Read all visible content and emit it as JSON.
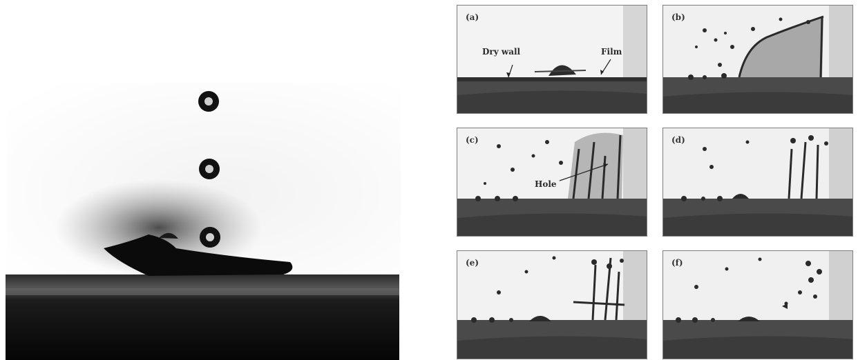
{
  "panels": [
    {
      "label": "(a)"
    },
    {
      "label": "(b)"
    },
    {
      "label": "(c)"
    },
    {
      "label": "(d)"
    },
    {
      "label": "(e)"
    },
    {
      "label": "(f)"
    }
  ],
  "annotations": {
    "dry_wall": "Dry wall",
    "film": "Film",
    "hole": "Hole"
  }
}
